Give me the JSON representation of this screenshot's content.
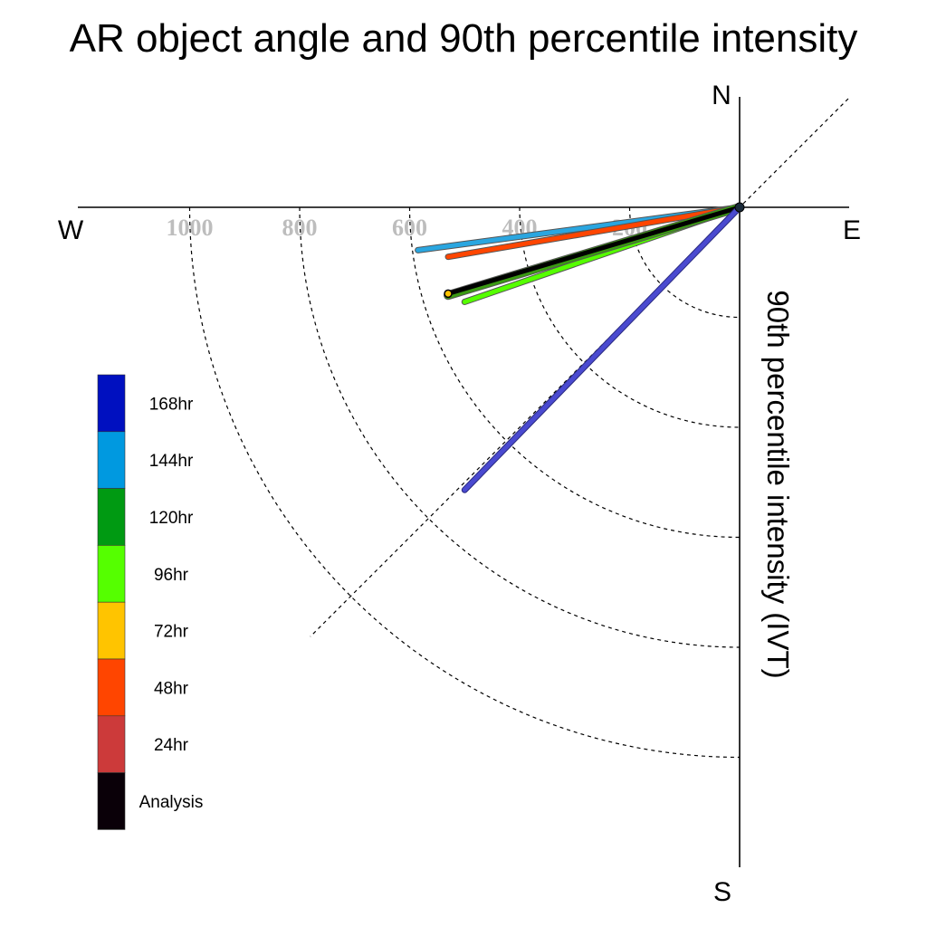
{
  "chart_data": {
    "type": "polar-vector",
    "title": "AR object angle and 90th percentile intensity",
    "ylabel": "90th percentile intensity (IVT)",
    "directions": {
      "north": "N",
      "south": "S",
      "east": "E",
      "west": "W"
    },
    "radial_ticks": [
      {
        "value": 200,
        "label": "200"
      },
      {
        "value": 400,
        "label": "400"
      },
      {
        "value": 600,
        "label": "600"
      },
      {
        "value": 800,
        "label": "800"
      },
      {
        "value": 1000,
        "label": "1000"
      }
    ],
    "rmax": 1200,
    "grid": true,
    "legend_position": "left",
    "legend": [
      {
        "label": "168hr",
        "color": "#0010c0"
      },
      {
        "label": "144hr",
        "color": "#0099e0"
      },
      {
        "label": "120hr",
        "color": "#009a12"
      },
      {
        "label": "96hr",
        "color": "#55ff00"
      },
      {
        "label": "72hr",
        "color": "#ffc400"
      },
      {
        "label": "48hr",
        "color": "#ff4500"
      },
      {
        "label": "24hr",
        "color": "#cc3a3a"
      },
      {
        "label": "Analysis",
        "color": "#0a0008"
      }
    ],
    "series": [
      {
        "name": "144hr",
        "x": -585,
        "y": -78,
        "color": "#2aa6e0",
        "edge": "#555555",
        "width": 5
      },
      {
        "name": "48hr",
        "x": -530,
        "y": -90,
        "color": "#ff4500",
        "edge": "#555555",
        "width": 5
      },
      {
        "name": "96hr",
        "x": -500,
        "y": -172,
        "color": "#55ff00",
        "edge": "#555555",
        "width": 5
      },
      {
        "name": "120hr",
        "x": -530,
        "y": -160,
        "color": "#3a9a12",
        "edge": "#555555",
        "width": 8
      },
      {
        "name": "Analysis",
        "x": -530,
        "y": -157,
        "color": "#000000",
        "edge": "#000000",
        "width": 3
      },
      {
        "name": "168hr",
        "x": -500,
        "y": -514,
        "color": "#4a4ad0",
        "edge": "#2a2a80",
        "width": 5
      }
    ]
  }
}
